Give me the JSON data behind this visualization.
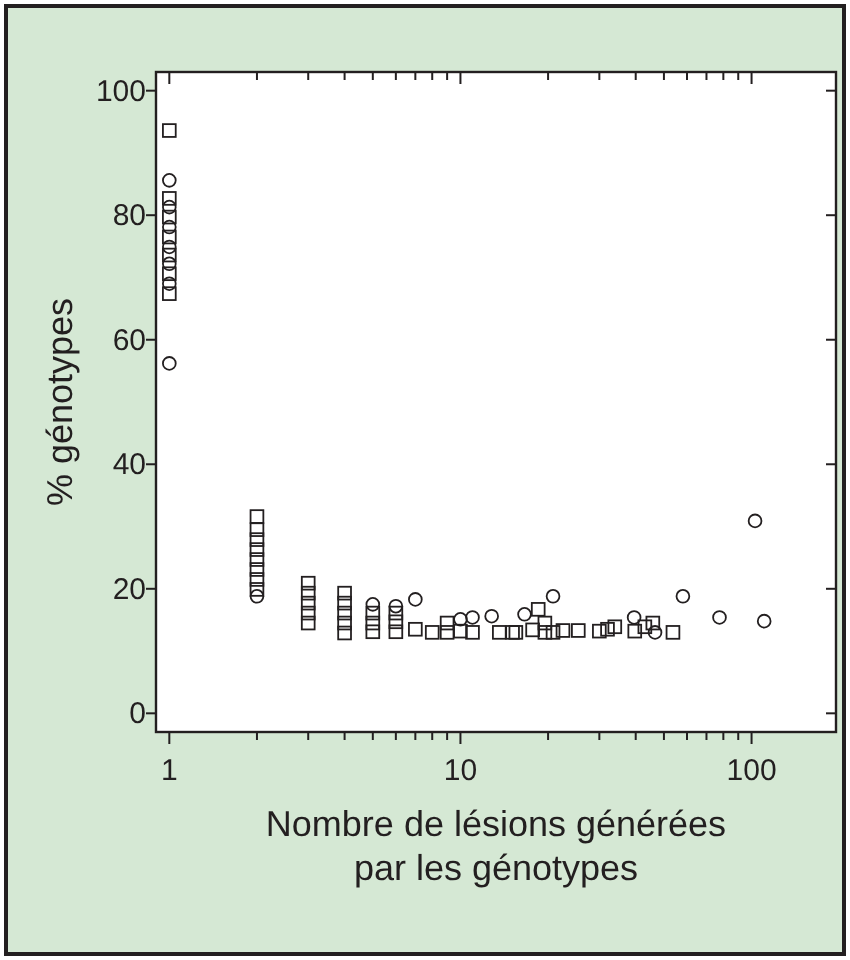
{
  "chart_data": {
    "type": "scatter",
    "xlabel": "Nombre de lésions générées\npar les génotypes",
    "ylabel": "% génotypes",
    "log": "x",
    "xlim": [
      0.9,
      195
    ],
    "ylim": [
      -3,
      103
    ],
    "xticks": [
      1,
      {
        "value": 2,
        "label": null
      },
      {
        "value": 3,
        "label": null
      },
      {
        "value": 4,
        "label": null
      },
      {
        "value": 5,
        "label": null
      },
      {
        "value": 6,
        "label": null
      },
      {
        "value": 7,
        "label": null
      },
      {
        "value": 8,
        "label": null
      },
      {
        "value": 9,
        "label": null
      },
      10,
      {
        "value": 20,
        "label": null
      },
      {
        "value": 30,
        "label": null
      },
      {
        "value": 40,
        "label": null
      },
      {
        "value": 50,
        "label": null
      },
      {
        "value": 60,
        "label": null
      },
      {
        "value": 70,
        "label": null
      },
      {
        "value": 80,
        "label": null
      },
      {
        "value": 90,
        "label": null
      },
      100
    ],
    "yticks": [
      0,
      20,
      40,
      60,
      80,
      100
    ],
    "series": [
      {
        "color": "#231f20",
        "marker": "circle",
        "x": [
          1,
          1,
          1,
          1,
          1,
          1,
          1,
          2,
          5,
          6,
          7,
          10,
          11,
          12.8,
          16.6,
          20.8,
          39.5,
          46.6,
          58.1,
          77.6,
          102.8,
          110.5
        ],
        "values": [
          85.6,
          81.3,
          78.1,
          74.9,
          72.2,
          69.0,
          56.2,
          18.8,
          17.5,
          17.2,
          18.3,
          15.1,
          15.4,
          15.6,
          15.9,
          18.8,
          15.4,
          13.0,
          18.8,
          15.4,
          30.9,
          14.8
        ]
      },
      {
        "color": "#231f20",
        "marker": "square",
        "x": [
          1,
          1,
          1,
          1,
          1,
          1,
          1,
          2,
          2,
          2,
          2,
          2,
          2,
          2,
          2,
          3,
          3,
          3,
          3,
          3,
          4,
          4,
          4,
          4,
          4,
          5,
          5,
          5,
          6,
          6,
          6,
          7,
          8,
          9,
          9,
          10,
          11,
          13.6,
          15.1,
          15.5,
          17.7,
          18.5,
          19.5,
          19.5,
          20.8,
          22.5,
          25.4,
          30,
          32,
          33.9,
          39.7,
          43,
          45.8,
          53.7
        ],
        "values": [
          93.6,
          82.7,
          79.7,
          76.5,
          73.6,
          70.6,
          67.4,
          31.6,
          29.5,
          27.9,
          26.3,
          24.7,
          23.1,
          21.5,
          19.9,
          20.9,
          19.3,
          17.7,
          16.1,
          14.5,
          19.3,
          17.7,
          16.1,
          14.5,
          12.9,
          16.1,
          14.5,
          13.1,
          16.1,
          14.7,
          13.1,
          13.5,
          13.0,
          14.5,
          13.0,
          13.2,
          13.0,
          13.0,
          13.0,
          13.0,
          13.4,
          16.7,
          14.5,
          13.0,
          13.0,
          13.3,
          13.3,
          13.2,
          13.5,
          13.9,
          13.2,
          13.9,
          14.5,
          13.0
        ]
      }
    ]
  }
}
